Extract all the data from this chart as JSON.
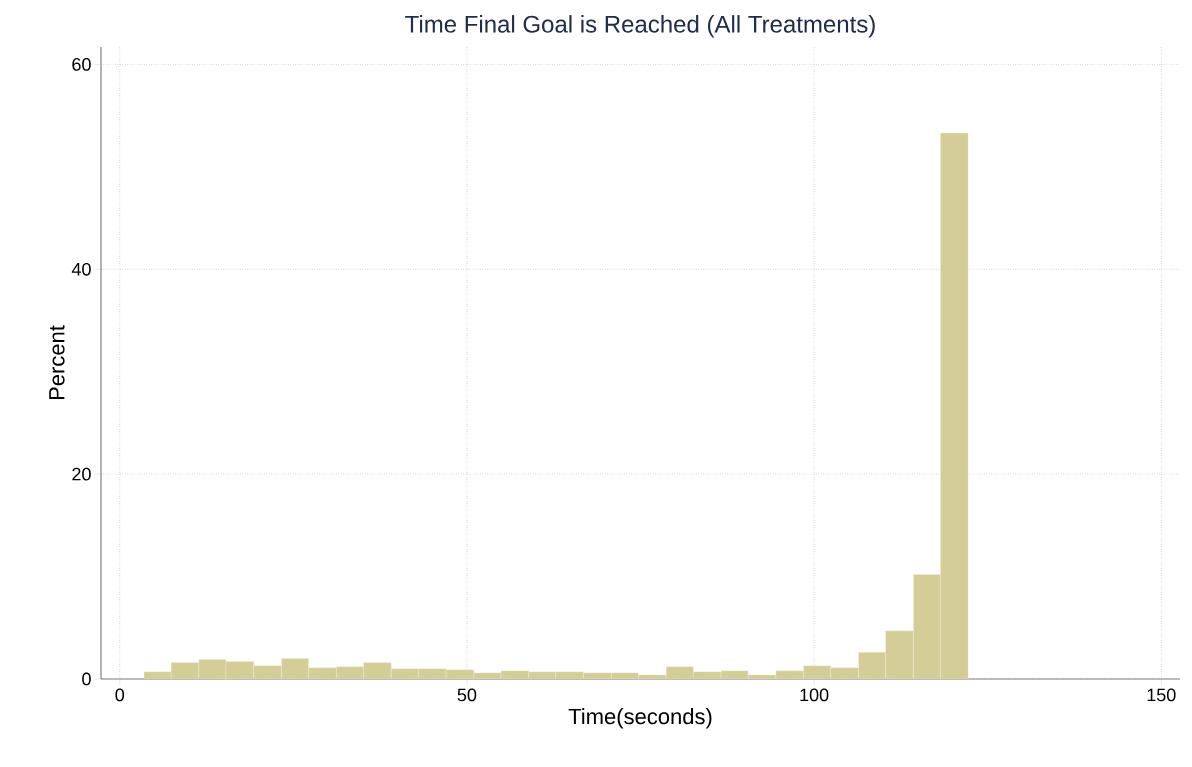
{
  "chart_data": {
    "type": "histogram",
    "title": "Time Final Goal is Reached (All Treatments)",
    "xlabel": "Time(seconds)",
    "ylabel": "Percent",
    "bins": [
      3.5,
      7.4,
      11.4,
      15.3,
      19.3,
      23.3,
      27.2,
      31.2,
      35.1,
      39.1,
      43.0,
      47.0,
      51.0,
      54.9,
      58.9,
      62.8,
      66.8,
      70.8,
      74.7,
      78.7,
      82.6,
      86.6,
      90.5,
      94.5,
      98.5,
      102.4,
      106.4,
      110.3,
      114.3,
      118.2,
      122.2
    ],
    "values": [
      0.7,
      1.6,
      1.9,
      1.7,
      1.3,
      2.0,
      1.1,
      1.2,
      1.6,
      1.0,
      1.0,
      0.9,
      0.6,
      0.8,
      0.7,
      0.7,
      0.6,
      0.6,
      0.4,
      1.2,
      0.7,
      0.8,
      0.4,
      0.8,
      1.3,
      1.1,
      2.6,
      4.7,
      10.2,
      53.3
    ],
    "color": "#d4cd97",
    "xlim": [
      -2.7,
      152.7
    ],
    "ylim": [
      0,
      61.7
    ],
    "xticks": [
      0,
      50,
      100,
      150
    ],
    "yticks": [
      0,
      20,
      40,
      60
    ],
    "grid": true
  }
}
